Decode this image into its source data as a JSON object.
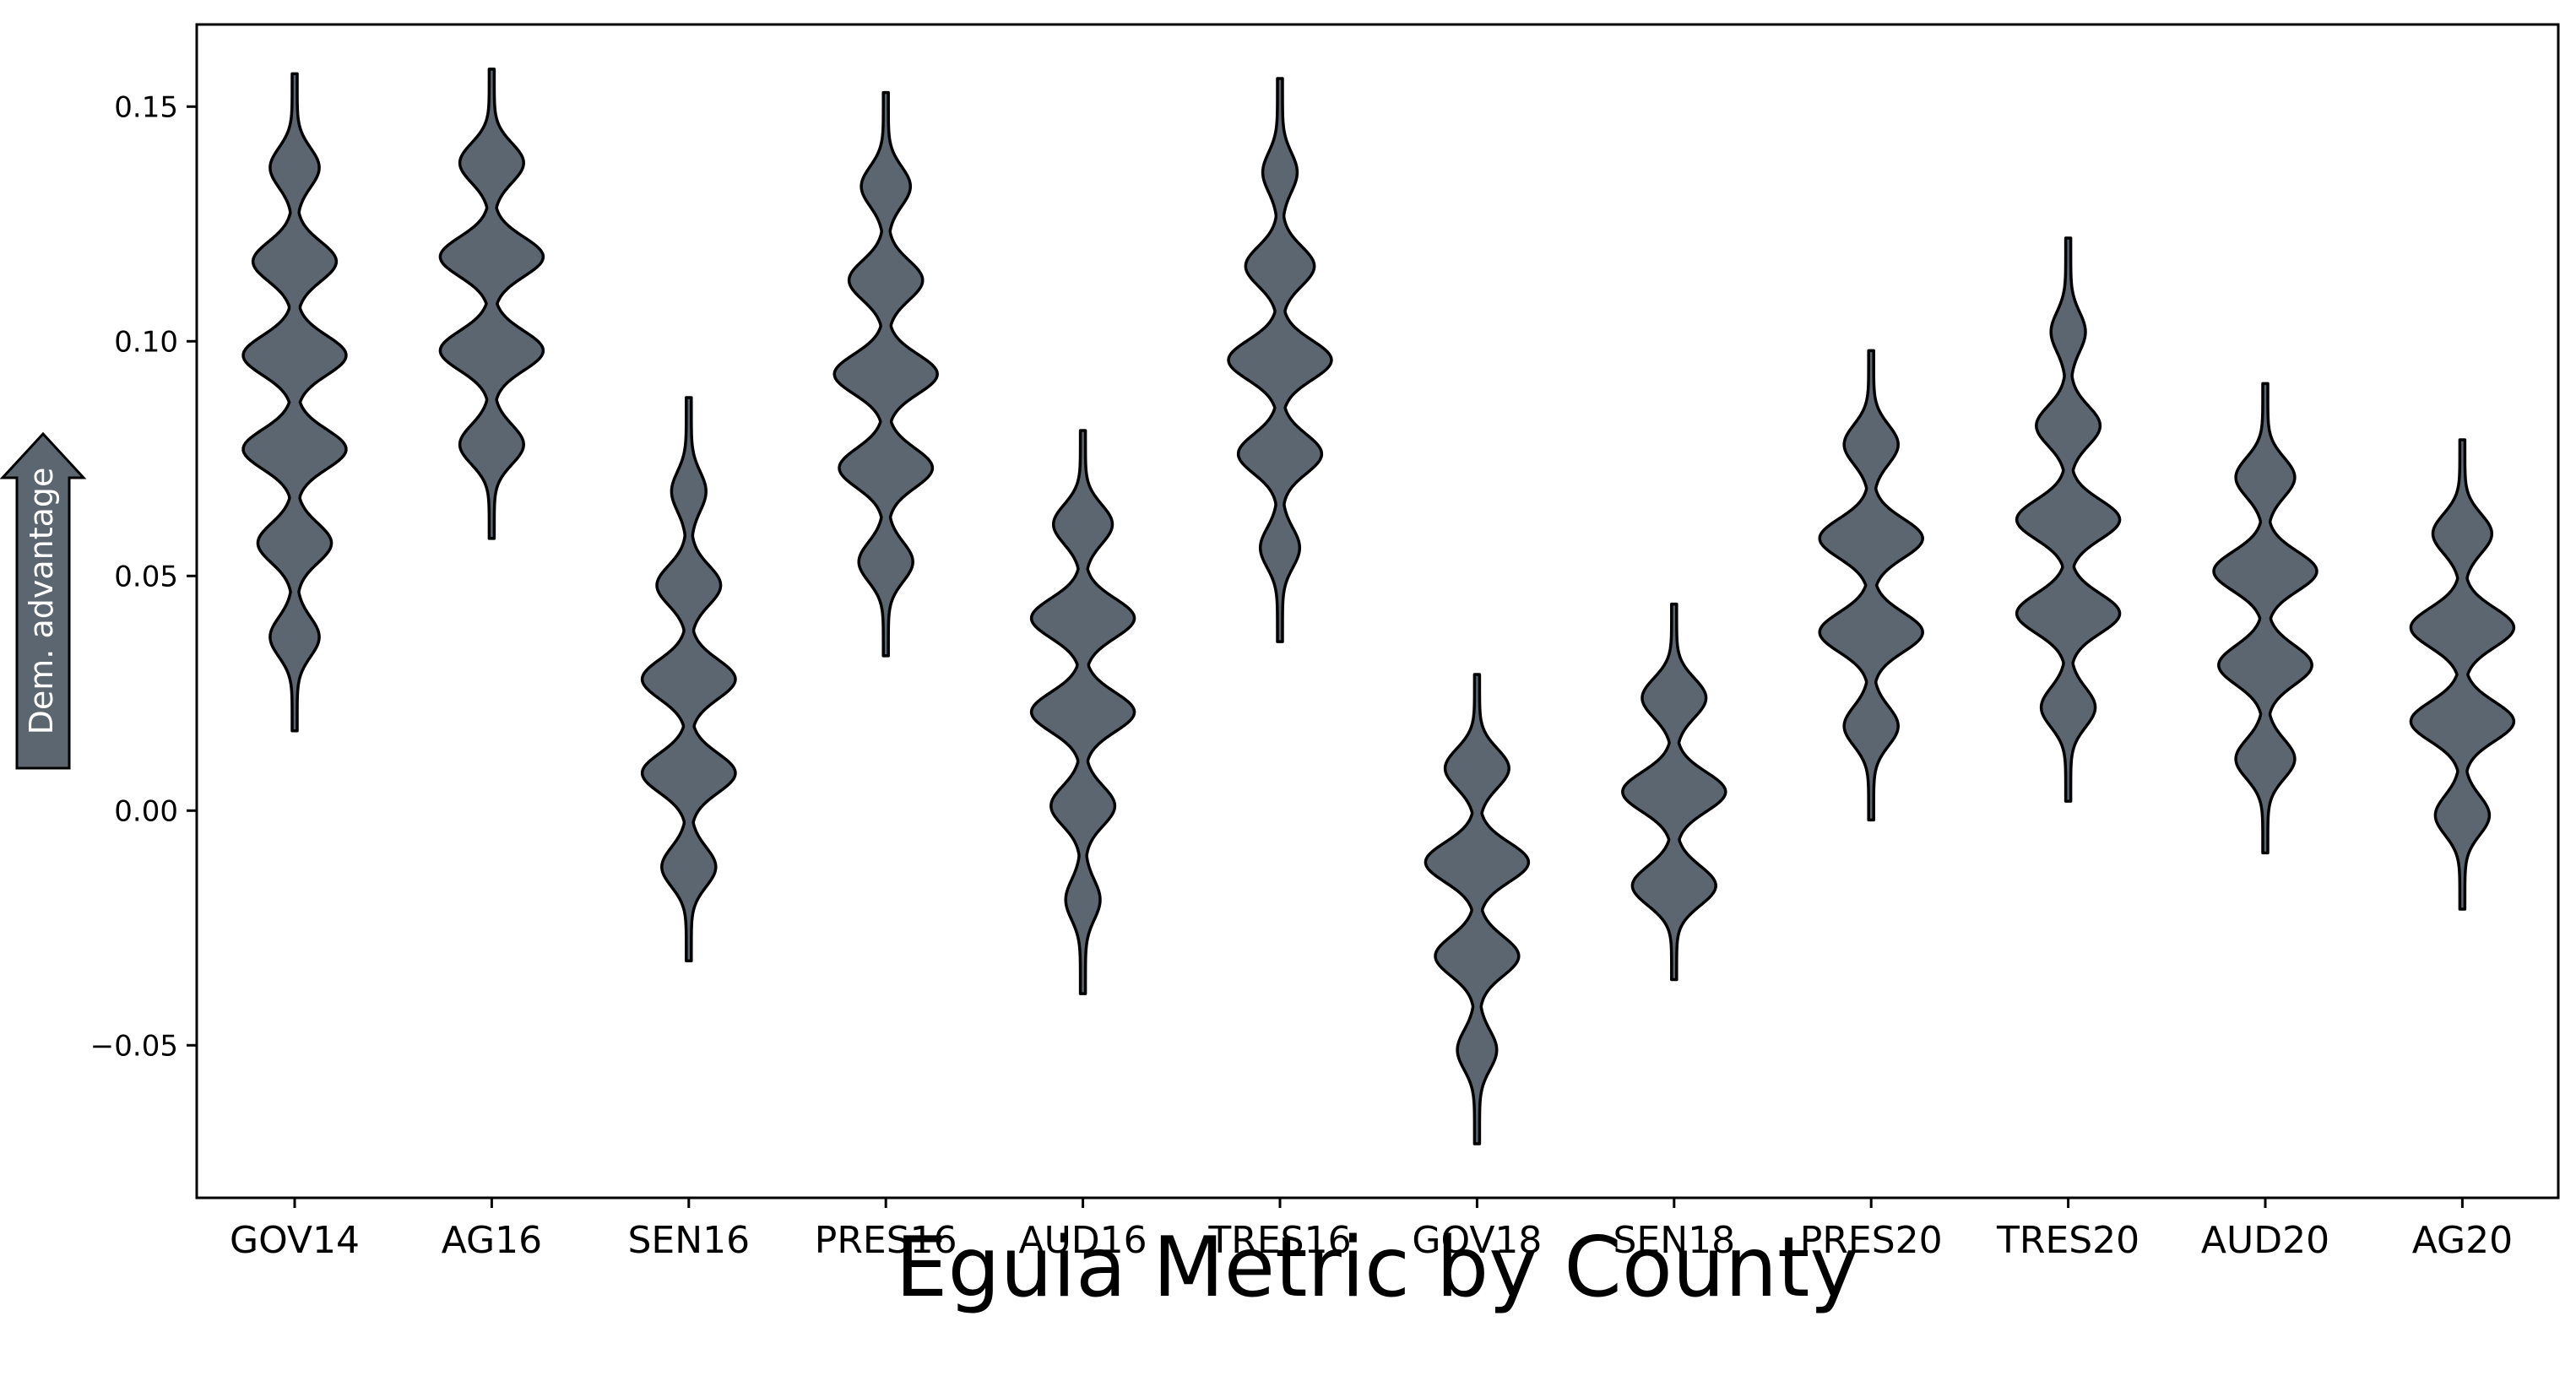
{
  "chart_data": {
    "type": "violin",
    "title": "",
    "xlabel": "Eguia Metric by County",
    "ylabel_arrow": "Dem. advantage",
    "ylim": [
      -0.0825,
      0.1675
    ],
    "yticks": [
      -0.05,
      0.0,
      0.05,
      0.1,
      0.15
    ],
    "ytick_labels": [
      "−0.05",
      "0.00",
      "0.05",
      "0.10",
      "0.15"
    ],
    "grid": false,
    "fill_color": "#5b6670",
    "edge_color": "#000000",
    "categories": [
      "GOV14",
      "AG16",
      "SEN16",
      "PRES16",
      "AUD16",
      "TRES16",
      "GOV18",
      "SEN18",
      "PRES20",
      "TRES20",
      "AUD20",
      "AG20"
    ],
    "violins": [
      {
        "category": "GOV14",
        "min": 0.017,
        "max": 0.157,
        "peaks": [
          0.037,
          0.057,
          0.077,
          0.097,
          0.117,
          0.137
        ],
        "weights": [
          0.45,
          0.7,
          1.0,
          1.0,
          0.8,
          0.45
        ]
      },
      {
        "category": "AG16",
        "min": 0.058,
        "max": 0.158,
        "peaks": [
          0.078,
          0.098,
          0.118,
          0.138
        ],
        "weights": [
          0.6,
          1.0,
          1.0,
          0.6
        ]
      },
      {
        "category": "SEN16",
        "min": -0.032,
        "max": 0.088,
        "peaks": [
          -0.012,
          0.008,
          0.028,
          0.048,
          0.068
        ],
        "weights": [
          0.5,
          0.9,
          0.9,
          0.6,
          0.3
        ]
      },
      {
        "category": "PRES16",
        "min": 0.033,
        "max": 0.153,
        "peaks": [
          0.053,
          0.073,
          0.093,
          0.113,
          0.133
        ],
        "weights": [
          0.5,
          0.9,
          1.0,
          0.7,
          0.45
        ]
      },
      {
        "category": "AUD16",
        "min": -0.039,
        "max": 0.081,
        "peaks": [
          -0.019,
          0.001,
          0.021,
          0.041,
          0.061
        ],
        "weights": [
          0.3,
          0.6,
          1.0,
          1.0,
          0.55
        ]
      },
      {
        "category": "TRES16",
        "min": 0.036,
        "max": 0.156,
        "peaks": [
          0.056,
          0.076,
          0.096,
          0.116,
          0.136
        ],
        "weights": [
          0.35,
          0.8,
          1.0,
          0.65,
          0.3
        ]
      },
      {
        "category": "GOV18",
        "min": -0.071,
        "max": 0.029,
        "peaks": [
          -0.051,
          -0.031,
          -0.011,
          0.009
        ],
        "weights": [
          0.35,
          0.8,
          1.0,
          0.6
        ]
      },
      {
        "category": "SEN18",
        "min": -0.036,
        "max": 0.044,
        "peaks": [
          -0.016,
          0.004,
          0.024
        ],
        "weights": [
          0.8,
          1.0,
          0.6
        ]
      },
      {
        "category": "PRES20",
        "min": -0.002,
        "max": 0.098,
        "peaks": [
          0.018,
          0.038,
          0.058,
          0.078
        ],
        "weights": [
          0.5,
          1.0,
          1.0,
          0.5
        ]
      },
      {
        "category": "TRES20",
        "min": 0.002,
        "max": 0.122,
        "peaks": [
          0.022,
          0.042,
          0.062,
          0.082,
          0.102
        ],
        "weights": [
          0.5,
          1.0,
          1.0,
          0.6,
          0.3
        ]
      },
      {
        "category": "AUD20",
        "min": -0.009,
        "max": 0.091,
        "peaks": [
          0.011,
          0.031,
          0.051,
          0.071
        ],
        "weights": [
          0.55,
          0.9,
          1.0,
          0.55
        ]
      },
      {
        "category": "AG20",
        "min": -0.021,
        "max": 0.079,
        "peaks": [
          -0.001,
          0.019,
          0.039,
          0.059
        ],
        "weights": [
          0.5,
          1.0,
          1.0,
          0.55
        ]
      }
    ]
  }
}
